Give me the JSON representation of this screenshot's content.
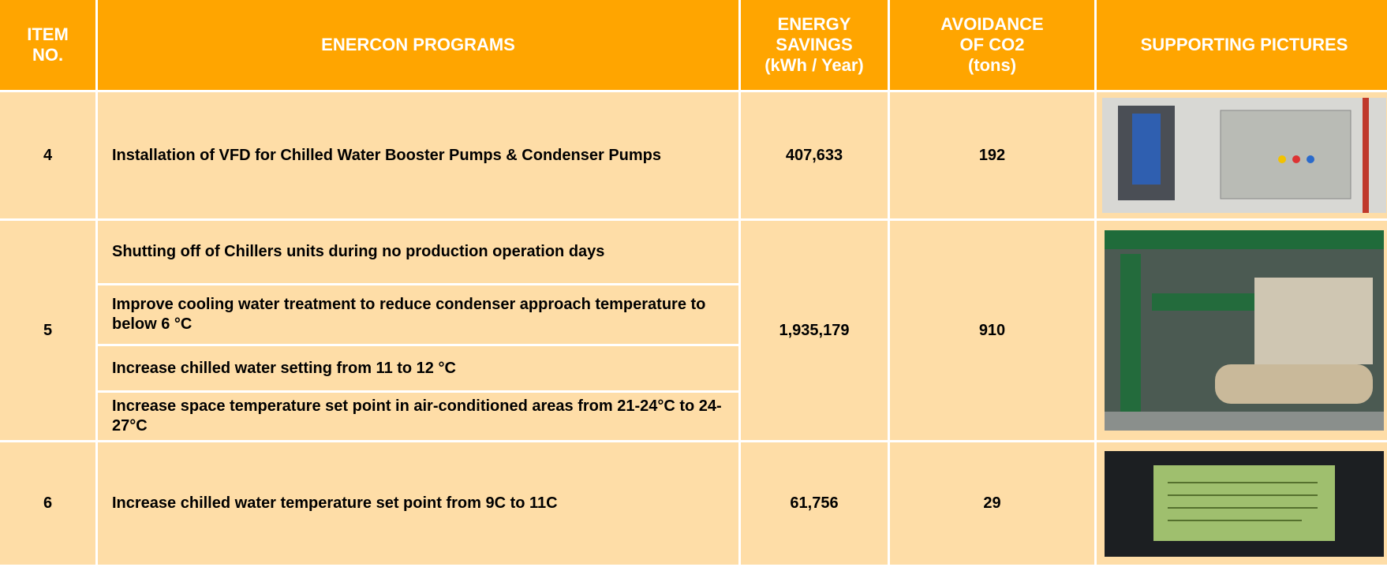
{
  "table": {
    "header": [
      "ITEM\nNO.",
      "ENERCON PROGRAMS",
      "ENERGY\nSAVINGS\n(kWh / Year)",
      "AVOIDANCE\nOF CO2\n(tons)",
      "SUPPORTING PICTURES"
    ],
    "rows": [
      {
        "item": "4",
        "programs": [
          "Installation of VFD for Chilled Water Booster Pumps & Condenser Pumps"
        ],
        "energy_savings": "407,633",
        "co2_avoidance": "192"
      },
      {
        "item": "5",
        "programs": [
          "Shutting off of Chillers units during no production operation days",
          "Improve cooling water treatment to reduce condenser approach temperature to below 6 °C",
          "Increase chilled water setting from 11 to 12 °C",
          "Increase space temperature set point in air-conditioned areas from 21-24°C to 24-27°C"
        ],
        "energy_savings": "1,935,179",
        "co2_avoidance": "910"
      },
      {
        "item": "6",
        "programs": [
          "Increase chilled water temperature set point from 9C to 11C"
        ],
        "energy_savings": "61,756",
        "co2_avoidance": "29"
      }
    ]
  }
}
